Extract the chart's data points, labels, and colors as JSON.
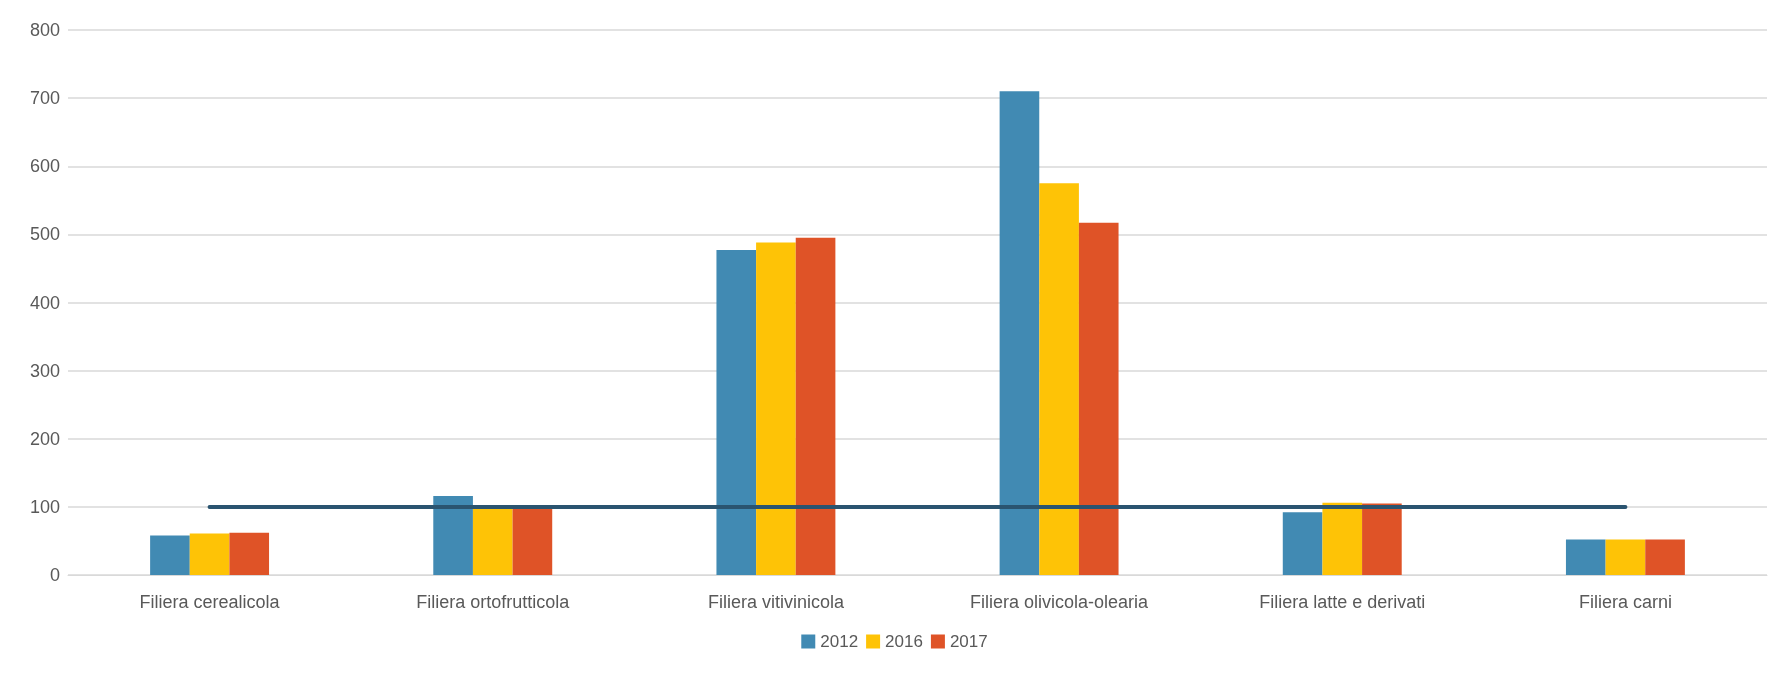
{
  "chart_data": {
    "type": "bar",
    "categories": [
      "Filiera cerealicola",
      "Filiera ortofrutticola",
      "Filiera vitivinicola",
      "Filiera olivicola-olearia",
      "Filiera latte e derivati",
      "Filiera carni"
    ],
    "series": [
      {
        "name": "2012",
        "color": "#418ab3",
        "values": [
          58,
          116,
          477,
          710,
          92,
          52
        ]
      },
      {
        "name": "2016",
        "color": "#fec306",
        "values": [
          61,
          98,
          488,
          575,
          106,
          52
        ]
      },
      {
        "name": "2017",
        "color": "#df5327",
        "values": [
          62,
          98,
          495,
          517,
          105,
          52
        ]
      },
      {
        "type": "line",
        "color": "#2a5470",
        "values": [
          100,
          100,
          100,
          100,
          100,
          100
        ]
      }
    ],
    "ylim": [
      0,
      800
    ],
    "yticks": [
      0,
      100,
      200,
      300,
      400,
      500,
      600,
      700,
      800
    ],
    "grid": "y",
    "legend": "bottom",
    "marker": "none"
  }
}
